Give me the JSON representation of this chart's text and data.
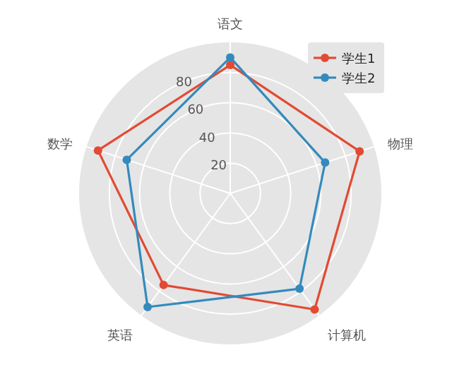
{
  "chart_data": {
    "type": "radar",
    "categories": [
      "语文",
      "物理",
      "计算机",
      "英语",
      "数学"
    ],
    "series": [
      {
        "name": "学生1",
        "color": "#e24a33",
        "values": [
          85,
          90,
          95,
          75,
          92
        ]
      },
      {
        "name": "学生2",
        "color": "#348abd",
        "values": [
          90,
          66,
          78,
          93,
          72
        ]
      }
    ],
    "ylim": [
      0,
      100
    ],
    "yticks": [
      20,
      40,
      60,
      80
    ],
    "grid": true,
    "legend": "top right",
    "marker": "circle"
  }
}
